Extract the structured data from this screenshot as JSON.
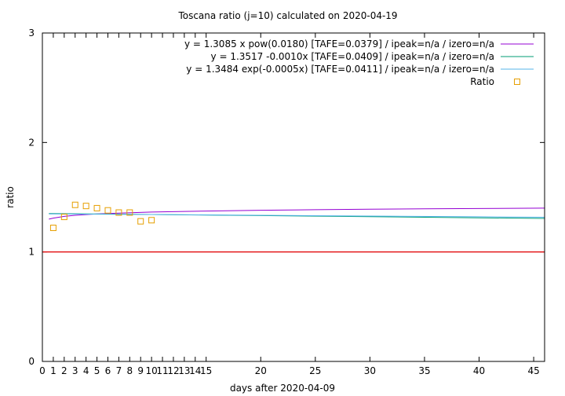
{
  "chart_data": {
    "type": "line",
    "title": "Toscana ratio (j=10) calculated on 2020-04-19",
    "xlabel": "days after 2020-04-09",
    "ylabel": "ratio",
    "xlim": [
      0,
      46
    ],
    "ylim": [
      0,
      3
    ],
    "xticks": [
      0,
      1,
      2,
      3,
      4,
      5,
      6,
      7,
      8,
      9,
      10,
      11,
      12,
      13,
      14,
      15,
      20,
      25,
      30,
      35,
      40,
      45
    ],
    "yticks": [
      0,
      1,
      2,
      3
    ],
    "legend_position": "top-right",
    "reference_line": {
      "y": 1,
      "color": "#e41a1c"
    },
    "series": [
      {
        "name": "y = 1.3085 x pow(0.0180)  [TAFE=0.0379] / ipeak=n/a / izero=n/a",
        "kind": "curve",
        "color": "#9400d3",
        "points": [
          [
            0.6,
            1.3
          ],
          [
            1,
            1.309
          ],
          [
            2,
            1.325
          ],
          [
            3,
            1.335
          ],
          [
            5,
            1.347
          ],
          [
            7,
            1.355
          ],
          [
            10,
            1.364
          ],
          [
            15,
            1.374
          ],
          [
            20,
            1.381
          ],
          [
            25,
            1.386
          ],
          [
            30,
            1.39
          ],
          [
            35,
            1.394
          ],
          [
            40,
            1.397
          ],
          [
            46,
            1.4
          ]
        ]
      },
      {
        "name": "y = 1.3517 -0.0010x  [TAFE=0.0409] / ipeak=n/a / izero=n/a",
        "kind": "curve",
        "color": "#009e73",
        "points": [
          [
            0.6,
            1.351
          ],
          [
            10,
            1.342
          ],
          [
            20,
            1.332
          ],
          [
            30,
            1.322
          ],
          [
            40,
            1.312
          ],
          [
            46,
            1.306
          ]
        ]
      },
      {
        "name": "y = 1.3484 exp(-0.0005x)  [TAFE=0.0411] / ipeak=n/a / izero=n/a",
        "kind": "curve",
        "color": "#56b4e9",
        "points": [
          [
            0.6,
            1.348
          ],
          [
            10,
            1.342
          ],
          [
            20,
            1.335
          ],
          [
            30,
            1.328
          ],
          [
            40,
            1.321
          ],
          [
            46,
            1.317
          ]
        ]
      },
      {
        "name": "Ratio",
        "kind": "points",
        "color": "#e69f00",
        "points": [
          [
            1,
            1.22
          ],
          [
            2,
            1.32
          ],
          [
            3,
            1.43
          ],
          [
            4,
            1.42
          ],
          [
            5,
            1.4
          ],
          [
            6,
            1.38
          ],
          [
            7,
            1.36
          ],
          [
            8,
            1.36
          ],
          [
            9,
            1.28
          ],
          [
            10,
            1.29
          ]
        ]
      }
    ]
  }
}
